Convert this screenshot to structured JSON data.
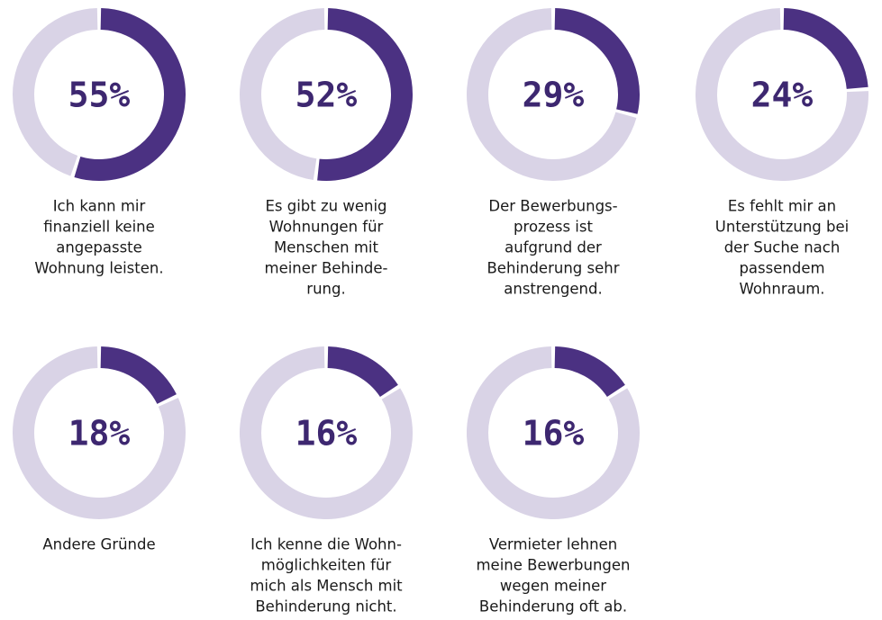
{
  "chart_data": [
    {
      "type": "donut",
      "values": [
        55
      ],
      "value_labels": [
        "55%"
      ],
      "color": "#4b3182",
      "track_color": "#d9d3e6",
      "label_lines": [
        "Ich kann mir",
        "finanziell keine",
        "angepasste",
        "Wohnung leisten."
      ]
    },
    {
      "type": "donut",
      "values": [
        52
      ],
      "value_labels": [
        "52%"
      ],
      "color": "#4b3182",
      "track_color": "#d9d3e6",
      "label_lines": [
        "Es gibt zu wenig",
        "Wohnungen für",
        "Menschen mit",
        "meiner Behinde-",
        "rung."
      ]
    },
    {
      "type": "donut",
      "values": [
        29
      ],
      "value_labels": [
        "29%"
      ],
      "color": "#4b3182",
      "track_color": "#d9d3e6",
      "label_lines": [
        "Der Bewerbungs-",
        "prozess ist",
        "aufgrund der",
        "Behinderung sehr",
        "anstrengend."
      ]
    },
    {
      "type": "donut",
      "values": [
        24
      ],
      "value_labels": [
        "24%"
      ],
      "color": "#4b3182",
      "track_color": "#d9d3e6",
      "label_lines": [
        "Es fehlt mir an",
        "Unterstützung bei",
        "der Suche nach",
        "passendem",
        "Wohnraum."
      ]
    },
    {
      "type": "donut",
      "values": [
        18
      ],
      "value_labels": [
        "18%"
      ],
      "color": "#4b3182",
      "track_color": "#d9d3e6",
      "label_lines": [
        "Andere Gründe"
      ]
    },
    {
      "type": "donut",
      "values": [
        16
      ],
      "value_labels": [
        "16%"
      ],
      "color": "#4b3182",
      "track_color": "#d9d3e6",
      "label_lines": [
        "Ich kenne die Wohn-",
        "möglichkeiten für",
        "mich als Mensch mit",
        "Behinderung nicht."
      ]
    },
    {
      "type": "donut",
      "values": [
        16
      ],
      "value_labels": [
        "16%"
      ],
      "color": "#4b3182",
      "track_color": "#d9d3e6",
      "label_lines": [
        "Vermieter lehnen",
        "meine Bewerbungen",
        "wegen meiner",
        "Behinderung oft ab."
      ]
    }
  ]
}
